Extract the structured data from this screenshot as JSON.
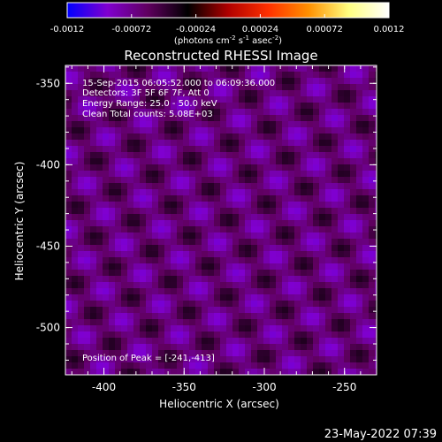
{
  "chart_data": {
    "type": "heatmap",
    "title": "Reconstructed RHESSI Image",
    "xlabel": "Heliocentric X (arcsec)",
    "ylabel": "Heliocentric Y (arcsec)",
    "xlim": [
      -424,
      -230
    ],
    "ylim": [
      -529,
      -339
    ],
    "x_ticks": [
      "-400",
      "-350",
      "-300",
      "-250"
    ],
    "x_tick_values": [
      -400,
      -350,
      -300,
      -250
    ],
    "y_ticks": [
      "-350",
      "-400",
      "-450",
      "-500"
    ],
    "y_tick_values": [
      -350,
      -400,
      -450,
      -500
    ],
    "colorbar": {
      "ticks": [
        "-0.0012",
        "-0.00072",
        "-0.00024",
        "0.00024",
        "0.00072",
        "0.0012"
      ],
      "tick_values": [
        -0.0012,
        -0.00072,
        -0.00024,
        0.00024,
        0.00072,
        0.0012
      ],
      "range": [
        -0.0012,
        0.0012
      ],
      "unit_label_prefix": "(photons cm",
      "unit_label_sup1": "-2",
      "unit_label_mid1": " s",
      "unit_label_sup2": "-1",
      "unit_label_mid2": " asec",
      "unit_label_sup3": "-2",
      "unit_label_suffix": ")",
      "colors": [
        "#0000ff",
        "#8000d0",
        "#600060",
        "#000000",
        "#b00000",
        "#ff3000",
        "#ff9000",
        "#ffff80",
        "#ffffff"
      ]
    },
    "annotations": {
      "line1": "15-Sep-2015 06:05:52.000 to 06:09:36.000",
      "line2": "Detectors: 3F 5F 6F 7F, Att 0",
      "line3": "Energy Range: 25.0 - 50.0 keV",
      "line4": "Clean     Total counts: 5.08E+03",
      "peak": "Position of Peak = [-241,-413]"
    },
    "peak": [
      -241,
      -413
    ]
  },
  "footer": {
    "date": "23-May-2022 07:39"
  }
}
